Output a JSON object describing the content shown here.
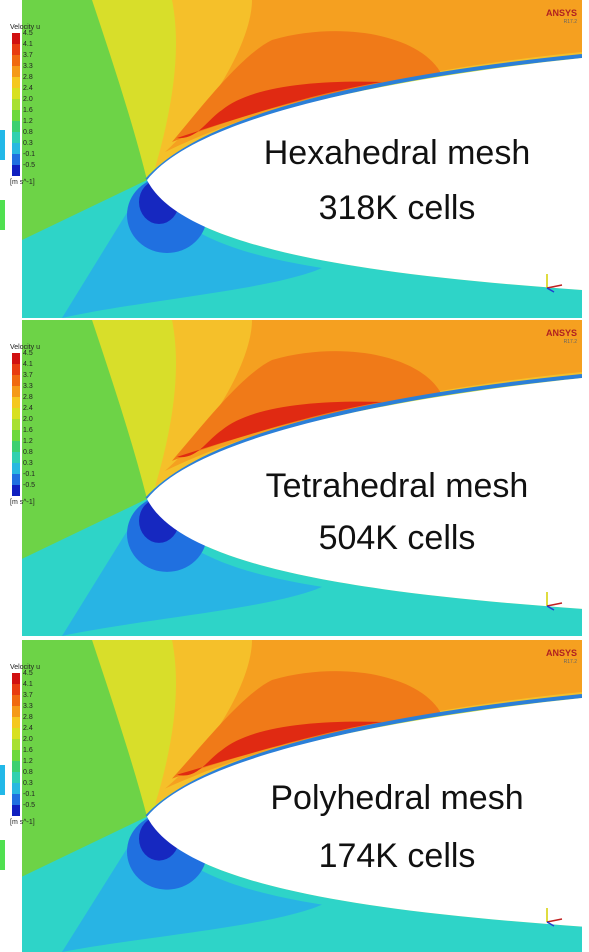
{
  "panels": [
    {
      "legend": {
        "title": "Velocity u",
        "labels": [
          "4.5",
          "4.1",
          "3.7",
          "3.3",
          "2.8",
          "2.4",
          "2.0",
          "1.6",
          "1.2",
          "0.8",
          "0.3",
          "-0.1",
          "-0.5"
        ],
        "unit": "[m s^-1]"
      },
      "logo": "ANSYS",
      "version": "R17.2",
      "caption": [
        "Hexahedral mesh",
        "318K cells"
      ]
    },
    {
      "legend": {
        "title": "Velocity u",
        "labels": [
          "4.5",
          "4.1",
          "3.7",
          "3.3",
          "2.8",
          "2.4",
          "2.0",
          "1.6",
          "1.2",
          "0.8",
          "0.3",
          "-0.1",
          "-0.5"
        ],
        "unit": "[m s^-1]"
      },
      "logo": "ANSYS",
      "version": "R17.2",
      "caption": [
        "Tetrahedral mesh",
        "504K cells"
      ]
    },
    {
      "legend": {
        "title": "Velocity u",
        "labels": [
          "4.5",
          "4.1",
          "3.7",
          "3.3",
          "2.8",
          "2.4",
          "2.0",
          "1.6",
          "1.2",
          "0.8",
          "0.3",
          "-0.1",
          "-0.5"
        ],
        "unit": "[m s^-1]"
      },
      "logo": "ANSYS",
      "version": "R17.2",
      "caption": [
        "Polyhedral mesh",
        "174K cells"
      ]
    }
  ]
}
